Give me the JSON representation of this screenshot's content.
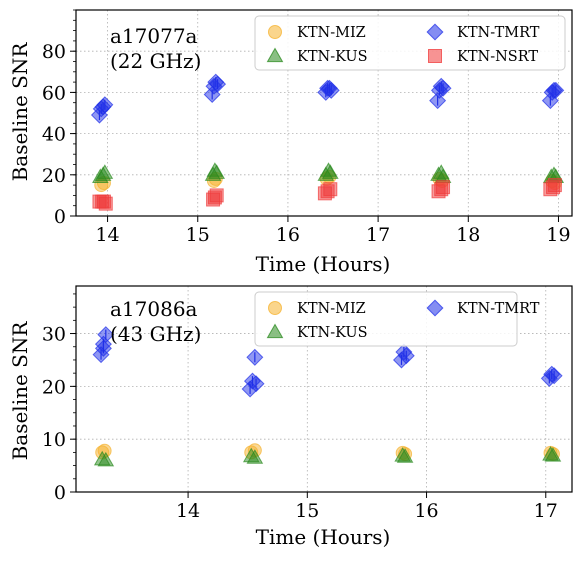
{
  "chart_data": [
    {
      "type": "scatter",
      "annotation": [
        "a17077a",
        "(22 GHz)"
      ],
      "xlabel": "Time (Hours)",
      "ylabel": "Baseline SNR",
      "xlim": [
        13.65,
        19.15
      ],
      "ylim": [
        0,
        100
      ],
      "xticks": [
        14,
        15,
        16,
        17,
        18,
        19
      ],
      "yticks": [
        0,
        20,
        40,
        60,
        80
      ],
      "grid": true,
      "legend_position": "top-right",
      "legend_columns": 2,
      "series": [
        {
          "name": "KTN-MIZ",
          "marker": "circle",
          "color": "#f5b22e",
          "points": [
            [
              13.93,
              15
            ],
            [
              13.96,
              16
            ],
            [
              15.18,
              17
            ],
            [
              15.2,
              18
            ],
            [
              16.43,
              18
            ],
            [
              16.46,
              19
            ],
            [
              17.68,
              18
            ],
            [
              17.71,
              17
            ],
            [
              18.93,
              17
            ],
            [
              18.96,
              16
            ]
          ]
        },
        {
          "name": "KTN-KUS",
          "marker": "triangle",
          "color": "#2a8a1e",
          "points": [
            [
              13.92,
              19
            ],
            [
              13.95,
              20
            ],
            [
              13.97,
              21
            ],
            [
              15.17,
              20
            ],
            [
              15.19,
              22
            ],
            [
              15.21,
              21
            ],
            [
              16.42,
              20
            ],
            [
              16.45,
              22
            ],
            [
              16.47,
              21
            ],
            [
              17.67,
              20
            ],
            [
              17.7,
              21
            ],
            [
              17.72,
              19
            ],
            [
              18.92,
              19
            ],
            [
              18.95,
              20
            ],
            [
              18.97,
              19
            ]
          ]
        },
        {
          "name": "KTN-TMRT",
          "marker": "diamond",
          "color": "#1f2fe8",
          "points": [
            [
              13.91,
              49
            ],
            [
              13.93,
              52
            ],
            [
              13.95,
              53
            ],
            [
              13.97,
              54
            ],
            [
              15.16,
              59
            ],
            [
              15.18,
              63
            ],
            [
              15.2,
              65
            ],
            [
              15.22,
              64
            ],
            [
              16.42,
              60
            ],
            [
              16.44,
              62
            ],
            [
              16.46,
              62
            ],
            [
              16.48,
              61
            ],
            [
              17.66,
              56
            ],
            [
              17.68,
              61
            ],
            [
              17.7,
              63
            ],
            [
              17.72,
              62
            ],
            [
              18.91,
              56
            ],
            [
              18.93,
              60
            ],
            [
              18.95,
              61
            ],
            [
              18.97,
              61
            ]
          ]
        },
        {
          "name": "KTN-NSRT",
          "marker": "square",
          "color": "#f03a3a",
          "points": [
            [
              13.91,
              7
            ],
            [
              13.94,
              7
            ],
            [
              13.96,
              7
            ],
            [
              13.98,
              6
            ],
            [
              15.17,
              8
            ],
            [
              15.19,
              9
            ],
            [
              15.21,
              10
            ],
            [
              16.41,
              11
            ],
            [
              16.44,
              12
            ],
            [
              16.47,
              13
            ],
            [
              17.67,
              12
            ],
            [
              17.7,
              13
            ],
            [
              17.72,
              14
            ],
            [
              18.91,
              13
            ],
            [
              18.94,
              14
            ],
            [
              18.96,
              15
            ]
          ]
        }
      ]
    },
    {
      "type": "scatter",
      "annotation": [
        "a17086a",
        "(43 GHz)"
      ],
      "xlabel": "Time (Hours)",
      "ylabel": "Baseline SNR",
      "xlim": [
        13.06,
        17.22
      ],
      "ylim": [
        0,
        39
      ],
      "xticks": [
        14,
        15,
        16,
        17
      ],
      "yticks": [
        0,
        10,
        20,
        30
      ],
      "grid": true,
      "legend_position": "top-right",
      "legend_columns": 2,
      "series": [
        {
          "name": "KTN-MIZ",
          "marker": "circle",
          "color": "#f5b22e",
          "points": [
            [
              13.28,
              7.5
            ],
            [
              13.3,
              7.8
            ],
            [
              14.53,
              7.5
            ],
            [
              14.56,
              7.9
            ],
            [
              15.8,
              7.4
            ],
            [
              15.82,
              7.2
            ],
            [
              17.04,
              7.4
            ],
            [
              17.06,
              7.2
            ]
          ]
        },
        {
          "name": "KTN-KUS",
          "marker": "triangle",
          "color": "#2a8a1e",
          "points": [
            [
              13.28,
              6.2
            ],
            [
              13.31,
              6.0
            ],
            [
              14.53,
              6.8
            ],
            [
              14.56,
              6.5
            ],
            [
              15.8,
              6.9
            ],
            [
              15.82,
              6.7
            ],
            [
              17.04,
              7.1
            ],
            [
              17.06,
              6.9
            ]
          ]
        },
        {
          "name": "KTN-TMRT",
          "marker": "diamond",
          "color": "#1f2fe8",
          "points": [
            [
              13.27,
              26
            ],
            [
              13.29,
              28
            ],
            [
              13.31,
              29.8
            ],
            [
              13.29,
              27.2
            ],
            [
              14.52,
              19.5
            ],
            [
              14.54,
              21
            ],
            [
              14.56,
              25.5
            ],
            [
              14.57,
              20.5
            ],
            [
              15.79,
              25
            ],
            [
              15.81,
              26.5
            ],
            [
              15.83,
              25.8
            ],
            [
              17.03,
              21.5
            ],
            [
              17.05,
              22.3
            ],
            [
              17.07,
              22
            ]
          ]
        }
      ]
    }
  ]
}
